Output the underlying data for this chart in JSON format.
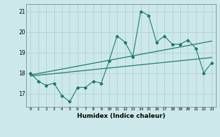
{
  "x": [
    0,
    1,
    2,
    3,
    4,
    5,
    6,
    7,
    8,
    9,
    10,
    11,
    12,
    13,
    14,
    15,
    16,
    17,
    18,
    19,
    20,
    21,
    22,
    23
  ],
  "y_main": [
    18.0,
    17.6,
    17.4,
    17.5,
    16.9,
    16.6,
    17.3,
    17.3,
    17.6,
    17.5,
    18.6,
    19.8,
    19.5,
    18.8,
    21.0,
    20.8,
    19.5,
    19.8,
    19.4,
    19.4,
    19.6,
    19.2,
    18.0,
    18.5
  ],
  "trend1_x": [
    0,
    23
  ],
  "trend1_y": [
    17.9,
    19.55
  ],
  "trend2_x": [
    0,
    23
  ],
  "trend2_y": [
    17.85,
    18.75
  ],
  "xlim": [
    -0.5,
    23.5
  ],
  "ylim": [
    16.35,
    21.35
  ],
  "yticks": [
    17,
    18,
    19,
    20,
    21
  ],
  "xticks": [
    0,
    1,
    2,
    3,
    4,
    5,
    6,
    7,
    8,
    9,
    10,
    11,
    12,
    13,
    14,
    15,
    16,
    17,
    18,
    19,
    20,
    21,
    22,
    23
  ],
  "xlabel": "Humidex (Indice chaleur)",
  "line_color": "#1a7a6e",
  "bg_color": "#cce8eb",
  "grid_color": "#aacccc",
  "title": ""
}
